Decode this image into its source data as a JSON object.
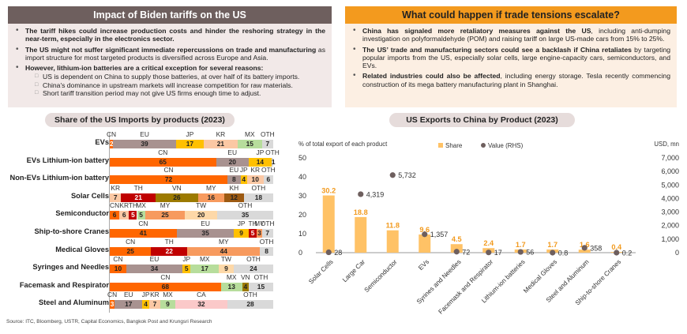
{
  "left_panel": {
    "title": "Impact of Biden tariffs on the US",
    "bullets": [
      {
        "bold": "The tariff hikes could increase production costs and hinder the reshoring strategy in the near-term, especially in the electronics sector.",
        "rest": ""
      },
      {
        "bold": "The US might not suffer significant immediate repercussions on trade and manufacturing",
        "rest": " as import structure for most targeted products is diversified across Europe and Asia."
      },
      {
        "bold": "However, lithium-ion batteries are a critical exception for several reasons:",
        "rest": ""
      }
    ],
    "sub_bullets": [
      "US is dependent on China to supply those batteries, at over half of its battery imports.",
      "China's dominance in upstream markets will increase competition for raw materials.",
      "Short tariff transition period may not give US firms enough time to adjust."
    ]
  },
  "right_panel": {
    "title": "What could happen if trade tensions escalate?",
    "bullets": [
      {
        "bold": "China has signaled more retaliatory measures against the US",
        "rest": ", including anti-dumping investigation on polyformaldehyde (POM) and raising tariff on large US-made cars from 15% to 25%."
      },
      {
        "bold": "The US’ trade and manufacturing sectors could see a backlash if China retaliates",
        "rest": " by targeting popular imports from the US, especially solar cells, large engine-capacity cars, semiconductors, and EVs."
      },
      {
        "bold": "Related industries could also be affected",
        "rest": ", including energy storage. Tesla recently commencing construction of its mega battery manufacturing plant in Shanghai."
      }
    ]
  },
  "source": "Source: ITC, Bloomberg, USTR, Capital Economics, Bangkok Post and Krungsri Research",
  "colors": {
    "CN": "#ff6600",
    "EU": "#a89290",
    "JP": "#ffc000",
    "KR": "#fbc8a4",
    "MX": "#b7dd9c",
    "OTH": "#d9d9d9",
    "TH": "#c00000",
    "VN": "#9c7a00",
    "MY": "#f79a5e",
    "KH": "#9c5a12",
    "TW": "#fdd8a8",
    "CA": "#fbc9c9",
    "share_bar": "#ffc266",
    "value_dot": "#6e5f5e",
    "share_label": "#f29a1e"
  },
  "chart_data": [
    {
      "type": "bar",
      "stacked": true,
      "orientation": "horizontal",
      "title": "Share of the US Imports by products (2023)",
      "unit": "% share",
      "categories": [
        "EVs",
        "EVs Lithium-ion battery",
        "Non-EVs Lithium-ion battery",
        "Solar Cells",
        "Semiconductor",
        "Ship-to-shore Cranes",
        "Medical Gloves",
        "Syringes and Needles",
        "Facemask and Respirator",
        "Steel and Aluminum"
      ],
      "rows": [
        {
          "label": "EVs",
          "segments": [
            {
              "code": "CN",
              "value": 2
            },
            {
              "code": "EU",
              "value": 39
            },
            {
              "code": "JP",
              "value": 17
            },
            {
              "code": "KR",
              "value": 21
            },
            {
              "code": "MX",
              "value": 15
            },
            {
              "code": "OTH",
              "value": 7
            }
          ]
        },
        {
          "label": "EVs Lithium-ion battery",
          "segments": [
            {
              "code": "CN",
              "value": 65
            },
            {
              "code": "EU",
              "value": 20
            },
            {
              "code": "JP",
              "value": 14
            },
            {
              "code": "OTH",
              "value": 1
            }
          ]
        },
        {
          "label": "Non-EVs Lithium-ion battery",
          "segments": [
            {
              "code": "CN",
              "value": 72
            },
            {
              "code": "EU",
              "value": 8
            },
            {
              "code": "JP",
              "value": 4
            },
            {
              "code": "KR",
              "value": 10
            },
            {
              "code": "OTH",
              "value": 6
            }
          ]
        },
        {
          "label": "Solar Cells",
          "segments": [
            {
              "code": "KR",
              "value": 7
            },
            {
              "code": "TH",
              "value": 21
            },
            {
              "code": "VN",
              "value": 26
            },
            {
              "code": "MY",
              "value": 16
            },
            {
              "code": "KH",
              "value": 12
            },
            {
              "code": "OTH",
              "value": 18
            }
          ]
        },
        {
          "label": "Semiconductor",
          "segments": [
            {
              "code": "CN",
              "value": 6
            },
            {
              "code": "KR",
              "value": 6
            },
            {
              "code": "TH",
              "value": 5
            },
            {
              "code": "MX",
              "value": 5
            },
            {
              "code": "MY",
              "value": 25
            },
            {
              "code": "TW",
              "value": 20
            },
            {
              "code": "OTH",
              "value": 35
            }
          ]
        },
        {
          "label": "Ship-to-shore Cranes",
          "segments": [
            {
              "code": "CN",
              "value": 41
            },
            {
              "code": "EU",
              "value": 35
            },
            {
              "code": "JP",
              "value": 9
            },
            {
              "code": "TH",
              "value": 5
            },
            {
              "code": "MY",
              "value": 3
            },
            {
              "code": "OTH",
              "value": 7
            }
          ]
        },
        {
          "label": "Medical Gloves",
          "segments": [
            {
              "code": "CN",
              "value": 25
            },
            {
              "code": "TH",
              "value": 22
            },
            {
              "code": "MY",
              "value": 44
            },
            {
              "code": "OTH",
              "value": 8
            }
          ]
        },
        {
          "label": "Syringes and Needles",
          "segments": [
            {
              "code": "CN",
              "value": 10
            },
            {
              "code": "EU",
              "value": 34
            },
            {
              "code": "JP",
              "value": 5
            },
            {
              "code": "MX",
              "value": 17
            },
            {
              "code": "TW",
              "value": 9
            },
            {
              "code": "OTH",
              "value": 24
            }
          ]
        },
        {
          "label": "Facemask and Respirator",
          "segments": [
            {
              "code": "CN",
              "value": 68
            },
            {
              "code": "MX",
              "value": 13
            },
            {
              "code": "VN",
              "value": 4
            },
            {
              "code": "OTH",
              "value": 15
            }
          ]
        },
        {
          "label": "Steel and Aluminum",
          "segments": [
            {
              "code": "CN",
              "value": 3
            },
            {
              "code": "EU",
              "value": 17
            },
            {
              "code": "JP",
              "value": 4
            },
            {
              "code": "KR",
              "value": 7
            },
            {
              "code": "MX",
              "value": 9
            },
            {
              "code": "CA",
              "value": 32
            },
            {
              "code": "OTH",
              "value": 28
            }
          ]
        }
      ]
    },
    {
      "type": "bar",
      "title": "US Exports to China by Product (2023)",
      "ylabel": "% of total export of each product",
      "y2label": "USD, mn",
      "ylim": [
        0,
        50
      ],
      "y2lim": [
        0,
        7000
      ],
      "yticks": [
        "0",
        "10",
        "20",
        "30",
        "40",
        "50"
      ],
      "y2ticks": [
        "0",
        "1,000",
        "2,000",
        "3,000",
        "4,000",
        "5,000",
        "6,000",
        "7,000"
      ],
      "legend": [
        {
          "name": "Share",
          "marker": "square"
        },
        {
          "name": "Value (RHS)",
          "marker": "circle"
        }
      ],
      "legend_position": "top-right",
      "categories": [
        "Solar Cells",
        "Large Car",
        "Semiconductor",
        "EVs",
        "Syrines and Needles",
        "Facemask and Respirator",
        "Lithium-ion batteries",
        "Medical Gloves",
        "Steel and Aluminum",
        "Ship-to-shore Cranes"
      ],
      "series": [
        {
          "name": "Share",
          "type": "bar",
          "values": [
            30.2,
            18.8,
            11.8,
            9.6,
            4.5,
            2.4,
            1.7,
            1.7,
            1.6,
            0.4
          ],
          "labels": [
            "30.2",
            "18.8",
            "11.8",
            "9.6",
            "4.5",
            "2.4",
            "1.7",
            "1.7",
            "1.6",
            "0.4"
          ]
        },
        {
          "name": "Value (RHS)",
          "type": "scatter",
          "axis": "right",
          "values": [
            28,
            4319,
            5732,
            1357,
            72,
            17,
            56,
            0.8,
            358,
            0.2
          ],
          "labels": [
            "28",
            "4,319",
            "5,732",
            "1,357",
            "72",
            "17",
            "56",
            "0.8",
            "358",
            "0.2"
          ]
        }
      ]
    }
  ]
}
